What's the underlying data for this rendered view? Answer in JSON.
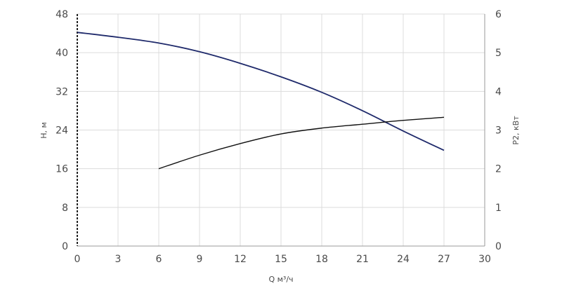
{
  "chart_data": {
    "type": "line",
    "title": "",
    "xlabel": "Q м³/ч",
    "ylabel": "H, м",
    "y2label": "P2, кВт",
    "xlim": [
      0,
      30
    ],
    "ylim": [
      0,
      48
    ],
    "y2lim": [
      0,
      6
    ],
    "x_ticks": [
      "0",
      "3",
      "6",
      "9",
      "12",
      "15",
      "18",
      "21",
      "24",
      "27",
      "30"
    ],
    "y_ticks": [
      "0",
      "8",
      "16",
      "24",
      "32",
      "40",
      "48"
    ],
    "y2_ticks": [
      "0",
      "1",
      "2",
      "3",
      "4",
      "5",
      "6"
    ],
    "grid": true,
    "legend": "none",
    "series": [
      {
        "axis": "left",
        "color": "#1f2a6b",
        "points": [
          [
            0,
            44.2
          ],
          [
            3,
            43.2
          ],
          [
            6,
            42.0
          ],
          [
            9,
            40.2
          ],
          [
            12,
            37.8
          ],
          [
            15,
            35.0
          ],
          [
            18,
            31.8
          ],
          [
            21,
            28.0
          ],
          [
            24,
            23.8
          ],
          [
            27,
            19.8
          ]
        ]
      },
      {
        "axis": "right",
        "color": "#111111",
        "points": [
          [
            6,
            2.0
          ],
          [
            9,
            2.35
          ],
          [
            12,
            2.65
          ],
          [
            15,
            2.9
          ],
          [
            18,
            3.05
          ],
          [
            21,
            3.15
          ],
          [
            24,
            3.25
          ],
          [
            27,
            3.33
          ]
        ]
      }
    ]
  }
}
